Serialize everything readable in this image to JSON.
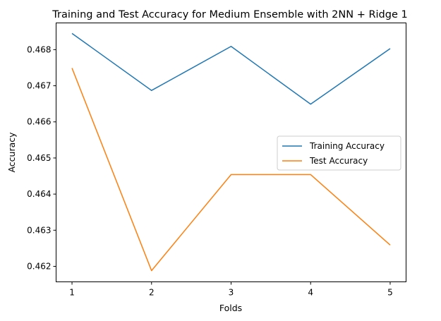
{
  "chart_data": {
    "type": "line",
    "title": "Training and Test Accuracy for Medium Ensemble with 2NN + Ridge 1",
    "xlabel": "Folds",
    "ylabel": "Accuracy",
    "x": [
      1,
      2,
      3,
      4,
      5
    ],
    "xticks": [
      "1",
      "2",
      "3",
      "4",
      "5"
    ],
    "xlim": [
      0.8,
      5.2
    ],
    "yticks": [
      0.462,
      0.463,
      0.464,
      0.465,
      0.466,
      0.467,
      0.468
    ],
    "ytick_labels": [
      "0.462",
      "0.463",
      "0.464",
      "0.465",
      "0.466",
      "0.467",
      "0.468"
    ],
    "ylim": [
      0.46157,
      0.46874
    ],
    "grid": false,
    "legend_position": "center-right",
    "series": [
      {
        "name": "Training Accuracy",
        "color": "#1f77b4",
        "values": [
          0.46845,
          0.46687,
          0.46809,
          0.46649,
          0.46803
        ]
      },
      {
        "name": "Test Accuracy",
        "color": "#ff7f0e",
        "values": [
          0.46749,
          0.46188,
          0.46454,
          0.46454,
          0.46259
        ]
      }
    ]
  }
}
